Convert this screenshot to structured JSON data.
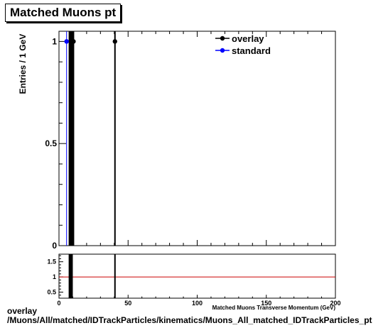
{
  "chart_data": {
    "type": "scatter",
    "title": "Matched Muons pt",
    "xlabel": "Matched Muons Transverse Momentum (GeV)",
    "ylabel": "Entries / 1 GeV",
    "xlim": [
      0,
      200
    ],
    "ylim": [
      0,
      1.05
    ],
    "yticks": [
      "0",
      "0.5",
      "1"
    ],
    "x_tick_labels": [
      "0",
      "50",
      "100",
      "150",
      "200"
    ],
    "legend_position": "top-right",
    "series": [
      {
        "name": "overlay",
        "color": "#000000",
        "x": [
          8.5,
          9.5,
          10.5,
          40.5
        ],
        "y": [
          1,
          1,
          1,
          1
        ]
      },
      {
        "name": "standard",
        "color": "#0000ff",
        "x": [
          5.5
        ],
        "y": [
          1
        ]
      }
    ],
    "ratio": {
      "yticks": [
        "0.5",
        "1",
        "1.5"
      ],
      "ylim": [
        0.3,
        1.75
      ],
      "reference": 1,
      "reference_color": "#cc0000",
      "bands_x": [
        8.5,
        9.5,
        10.5,
        40.5
      ]
    }
  },
  "footer": {
    "line1": "overlay",
    "line2": "/Muons/All/matched/IDTrackParticles/kinematics/Muons_All_matched_IDTrackParticles_pt"
  }
}
